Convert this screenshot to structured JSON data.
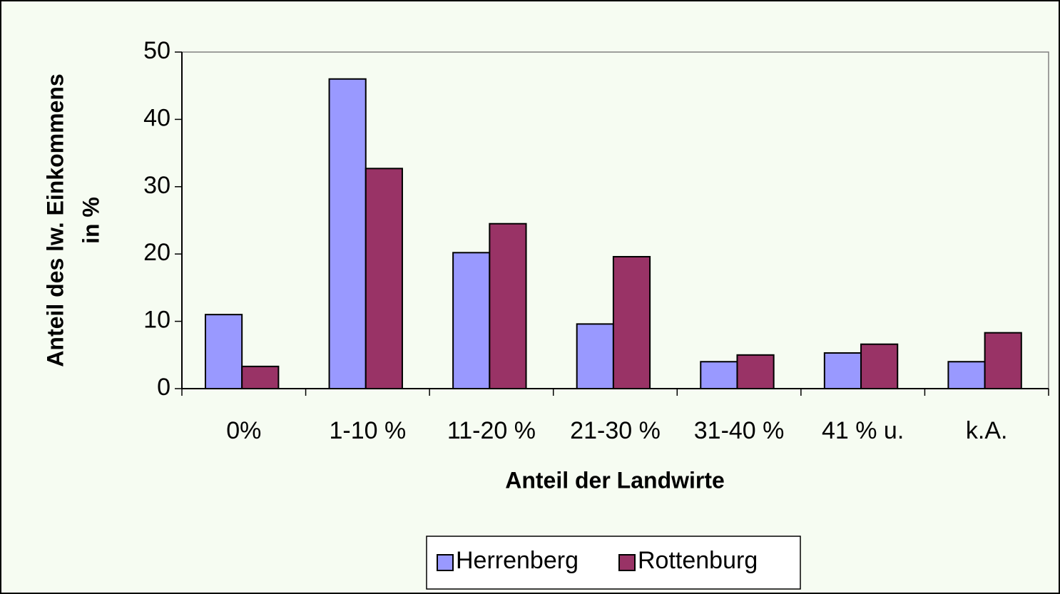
{
  "chart_data": {
    "type": "bar",
    "x_label": "Anteil der Landwirte",
    "y_label": [
      "Anteil des lw. Einkommens",
      "in %"
    ],
    "categories": [
      "0%",
      "1-10 %",
      "11-20 %",
      "21-30 %",
      "31-40 %",
      "41 % u.",
      "k.A."
    ],
    "series": [
      {
        "name": "Herrenberg",
        "color": "#9999ff",
        "values": [
          11,
          46,
          20.2,
          9.6,
          4,
          5.3,
          4
        ]
      },
      {
        "name": "Rottenburg",
        "color": "#993366",
        "values": [
          3.3,
          32.7,
          24.5,
          19.6,
          5,
          6.6,
          8.3
        ]
      }
    ],
    "ylim": [
      0,
      50
    ],
    "yticks": [
      0,
      10,
      20,
      30,
      40,
      50
    ],
    "grid": false,
    "legend": "bottom"
  }
}
